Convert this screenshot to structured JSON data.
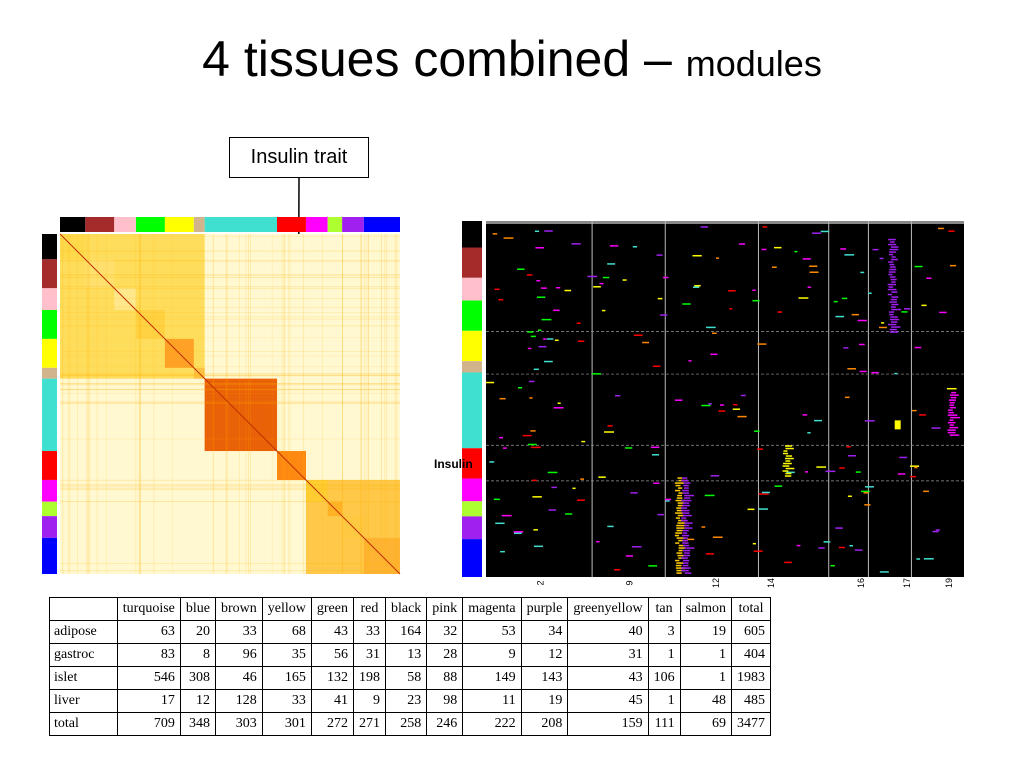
{
  "title": {
    "main": "4 tissues combined – ",
    "sub": "modules"
  },
  "callout": {
    "label": "Insulin trait"
  },
  "side_label": "Insulin",
  "module_colors": [
    "#000000",
    "#a52a2a",
    "#ffc0cb",
    "#00ff00",
    "#ffff00",
    "#d2b48c",
    "#40e0d0",
    "#ff0000",
    "#ff00ff",
    "#adff2f",
    "#a020f0",
    "#0000ff"
  ],
  "axis_ticks": [
    "2",
    "9",
    "12",
    "14",
    "16",
    "17",
    "19"
  ],
  "table": {
    "columns": [
      "",
      "turquoise",
      "blue",
      "brown",
      "yellow",
      "green",
      "red",
      "black",
      "pink",
      "magenta",
      "purple",
      "greenyellow",
      "tan",
      "salmon",
      "total"
    ],
    "rows": [
      {
        "label": "adipose",
        "values": [
          "63",
          "20",
          "33",
          "68",
          "43",
          "33",
          "164",
          "32",
          "53",
          "34",
          "40",
          "3",
          "19",
          "605"
        ]
      },
      {
        "label": "gastroc",
        "values": [
          "83",
          "8",
          "96",
          "35",
          "56",
          "31",
          "13",
          "28",
          "9",
          "12",
          "31",
          "1",
          "1",
          "404"
        ]
      },
      {
        "label": "islet",
        "values": [
          "546",
          "308",
          "46",
          "165",
          "132",
          "198",
          "58",
          "88",
          "149",
          "143",
          "43",
          "106",
          "1",
          "1983"
        ]
      },
      {
        "label": "liver",
        "values": [
          "17",
          "12",
          "128",
          "33",
          "41",
          "9",
          "23",
          "98",
          "11",
          "19",
          "45",
          "1",
          "48",
          "485"
        ]
      },
      {
        "label": "total",
        "values": [
          "709",
          "348",
          "303",
          "301",
          "272",
          "271",
          "258",
          "246",
          "222",
          "208",
          "159",
          "111",
          "69",
          "3477"
        ]
      }
    ]
  }
}
